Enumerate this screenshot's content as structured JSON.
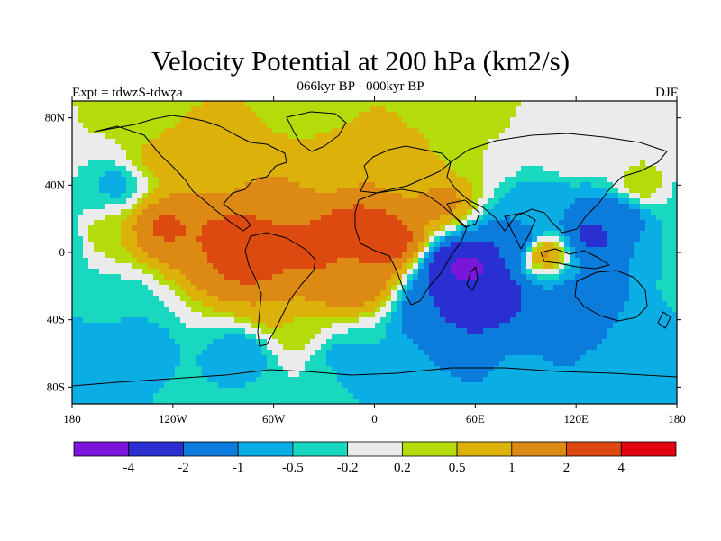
{
  "title": "Velocity Potential at 200 hPa (km2/s)",
  "subtitle": "066kyr BP - 000kyr BP",
  "left_label": "Expt = tdwzS-tdwza",
  "right_label": "DJF",
  "lat_ticks": [
    {
      "label": "80N",
      "lat": 80
    },
    {
      "label": "40N",
      "lat": 40
    },
    {
      "label": "0",
      "lat": 0
    },
    {
      "label": "40S",
      "lat": -40
    },
    {
      "label": "80S",
      "lat": -80
    }
  ],
  "lon_ticks": [
    {
      "label": "180",
      "lon": -180
    },
    {
      "label": "120W",
      "lon": -120
    },
    {
      "label": "60W",
      "lon": -60
    },
    {
      "label": "0",
      "lon": 0
    },
    {
      "label": "60E",
      "lon": 60
    },
    {
      "label": "120E",
      "lon": 120
    },
    {
      "label": "180",
      "lon": 180
    }
  ],
  "colorbar": {
    "colors": [
      "#7a16d9",
      "#2a2fd2",
      "#0b7bdc",
      "#0aaee4",
      "#18d8c0",
      "#ebebeb",
      "#b4dc0a",
      "#dcb20a",
      "#dc8a14",
      "#dc4a0f",
      "#e3000f"
    ],
    "labels": [
      "-4",
      "-2",
      "-1",
      "-0.5",
      "-0.2",
      "0.2",
      "0.5",
      "1",
      "2",
      "4"
    ]
  },
  "fields": [
    {
      "lon": -160,
      "lat": 85,
      "value": 0.3
    },
    {
      "lon": -40,
      "lat": 85,
      "value": 0.3
    },
    {
      "lon": 60,
      "lat": 85,
      "value": 0.3
    },
    {
      "lon": 160,
      "lat": 85,
      "value": 0.1
    },
    {
      "lon": -130,
      "lat": 55,
      "value": 0.6
    },
    {
      "lon": -95,
      "lat": 48,
      "value": 0.8
    },
    {
      "lon": -25,
      "lat": 50,
      "value": 0.7
    },
    {
      "lon": 20,
      "lat": 45,
      "value": 0.8
    },
    {
      "lon": 40,
      "lat": 30,
      "value": 1.2
    },
    {
      "lon": -125,
      "lat": 15,
      "value": 2.2
    },
    {
      "lon": -85,
      "lat": 8,
      "value": 2.4
    },
    {
      "lon": -70,
      "lat": -5,
      "value": 2.8
    },
    {
      "lon": -35,
      "lat": 0,
      "value": 2.2
    },
    {
      "lon": -10,
      "lat": 12,
      "value": 2.6
    },
    {
      "lon": 5,
      "lat": 8,
      "value": 3.0
    },
    {
      "lon": -15,
      "lat": -15,
      "value": 1.8
    },
    {
      "lon": -55,
      "lat": -30,
      "value": 1.0
    },
    {
      "lon": -45,
      "lat": -45,
      "value": 0.4
    },
    {
      "lon": -160,
      "lat": 10,
      "value": 0.5
    },
    {
      "lon": -175,
      "lat": 35,
      "value": -0.3
    },
    {
      "lon": -155,
      "lat": 40,
      "value": -0.7
    },
    {
      "lon": -175,
      "lat": -25,
      "value": -0.3
    },
    {
      "lon": -150,
      "lat": -30,
      "value": -0.5
    },
    {
      "lon": -140,
      "lat": -55,
      "value": -0.7
    },
    {
      "lon": -80,
      "lat": -60,
      "value": -0.8
    },
    {
      "lon": -20,
      "lat": -60,
      "value": -0.6
    },
    {
      "lon": 0,
      "lat": -70,
      "value": -0.6
    },
    {
      "lon": 55,
      "lat": -10,
      "value": -4.6
    },
    {
      "lon": 65,
      "lat": -25,
      "value": -3.2
    },
    {
      "lon": 40,
      "lat": -35,
      "value": -2.0
    },
    {
      "lon": 85,
      "lat": 5,
      "value": -2.2
    },
    {
      "lon": 95,
      "lat": 25,
      "value": -0.8
    },
    {
      "lon": 100,
      "lat": 0,
      "value": 1.4
    },
    {
      "lon": 130,
      "lat": 10,
      "value": -2.4
    },
    {
      "lon": 145,
      "lat": 20,
      "value": -1.6
    },
    {
      "lon": 130,
      "lat": -25,
      "value": -1.5
    },
    {
      "lon": 110,
      "lat": -45,
      "value": -1.4
    },
    {
      "lon": 160,
      "lat": -40,
      "value": -0.9
    },
    {
      "lon": 175,
      "lat": 5,
      "value": -0.5
    },
    {
      "lon": 160,
      "lat": 40,
      "value": 0.5
    },
    {
      "lon": 120,
      "lat": 60,
      "value": 0.1
    },
    {
      "lon": 60,
      "lat": 60,
      "value": 0.2
    },
    {
      "lon": 90,
      "lat": -70,
      "value": -0.9
    },
    {
      "lon": 150,
      "lat": -70,
      "value": -0.6
    },
    {
      "lon": -160,
      "lat": -70,
      "value": -0.6
    }
  ]
}
